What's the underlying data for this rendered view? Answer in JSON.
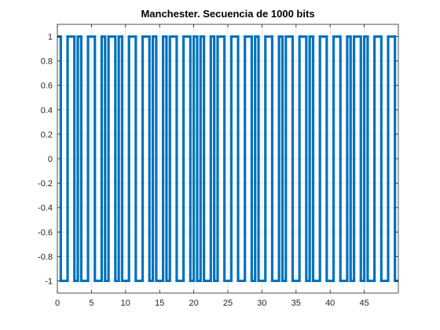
{
  "chart_data": {
    "type": "line",
    "title": "Manchester. Secuencia de 1000 bits",
    "xlabel": "",
    "ylabel": "",
    "xlim": [
      0,
      50
    ],
    "ylim": [
      -1.1,
      1.1
    ],
    "x_ticks": [
      0,
      5,
      10,
      15,
      20,
      25,
      30,
      35,
      40,
      45
    ],
    "x_tick_labels": [
      "0",
      "5",
      "10",
      "15",
      "20",
      "25",
      "30",
      "35",
      "40",
      "45"
    ],
    "y_ticks": [
      1,
      0.8,
      0.6,
      0.4,
      0.2,
      0,
      -0.2,
      -0.4,
      -0.6,
      -0.8,
      -1
    ],
    "y_tick_labels": [
      "1",
      "0.8",
      "0.6",
      "0.4",
      "0.2",
      "0",
      "-0.2",
      "-0.4",
      "-0.6",
      "-0.8",
      "-1"
    ],
    "grid": true,
    "line_color": "#0072BD",
    "series": [
      {
        "encoding": "manchester",
        "bit_period": 1,
        "bits": [
          1,
          0,
          1,
          1,
          0,
          1,
          0,
          0,
          1,
          1,
          0,
          1,
          0,
          1,
          1,
          0,
          0,
          1,
          0,
          1,
          1,
          1,
          0,
          0,
          1,
          0,
          1,
          0,
          1,
          1,
          0,
          1,
          0,
          0,
          1,
          0,
          1,
          1,
          0,
          1,
          0,
          1,
          0,
          0,
          1,
          1,
          0,
          1,
          0,
          1
        ]
      }
    ]
  }
}
